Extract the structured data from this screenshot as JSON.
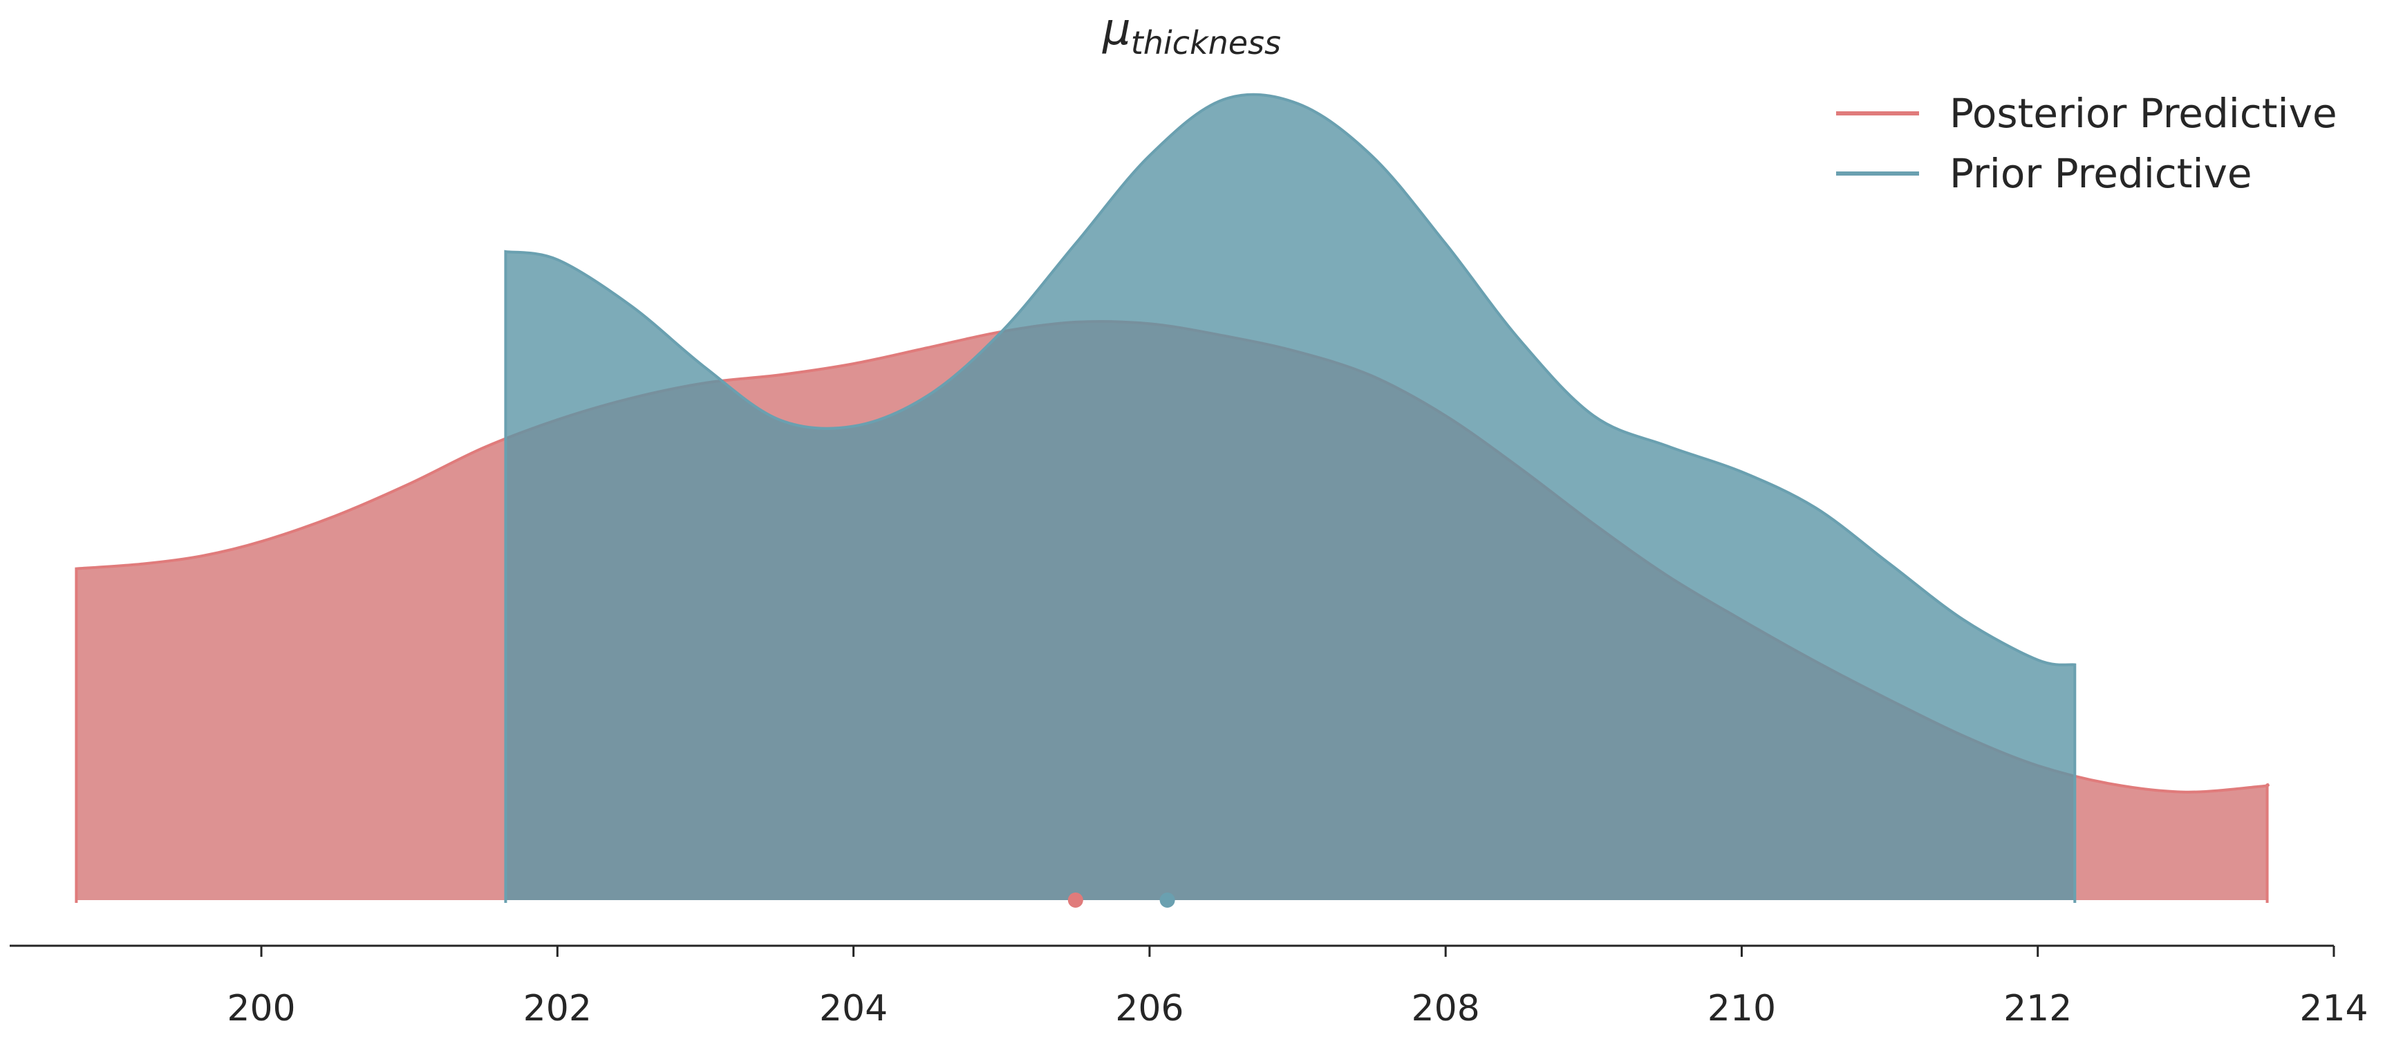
{
  "chart_data": {
    "type": "area",
    "title": {
      "symbol": "μ",
      "subscript": "thickness"
    },
    "xlabel": "",
    "ylabel": "",
    "xlim": [
      198.3,
      214.0
    ],
    "ylim": [
      0,
      1.0
    ],
    "x_ticks": [
      200,
      202,
      204,
      206,
      208,
      210,
      212,
      214
    ],
    "grid": false,
    "legend_position": "top-right",
    "series": [
      {
        "name": "Posterior Predictive",
        "color": "#e07b7b",
        "point_estimate": 205.5,
        "x": [
          198.75,
          199.2,
          199.6,
          200.0,
          200.5,
          201.0,
          201.5,
          202.0,
          202.5,
          203.0,
          203.5,
          204.0,
          204.5,
          205.0,
          205.5,
          206.0,
          206.5,
          207.0,
          207.5,
          208.0,
          208.5,
          209.0,
          209.5,
          210.0,
          210.5,
          211.0,
          211.5,
          212.0,
          212.5,
          213.0,
          213.5,
          213.55
        ],
        "y": [
          0.414,
          0.42,
          0.43,
          0.448,
          0.48,
          0.52,
          0.565,
          0.6,
          0.627,
          0.646,
          0.656,
          0.67,
          0.69,
          0.71,
          0.722,
          0.72,
          0.705,
          0.685,
          0.655,
          0.605,
          0.54,
          0.47,
          0.405,
          0.35,
          0.298,
          0.25,
          0.205,
          0.168,
          0.145,
          0.135,
          0.142,
          0.144
        ]
      },
      {
        "name": "Prior Predictive",
        "color": "#6aa0b0",
        "point_estimate": 206.12,
        "x": [
          201.65,
          202.0,
          202.5,
          203.0,
          203.5,
          204.0,
          204.5,
          205.0,
          205.5,
          206.0,
          206.5,
          207.0,
          207.5,
          208.0,
          208.5,
          209.0,
          209.5,
          210.0,
          210.5,
          211.0,
          211.5,
          212.0,
          212.25
        ],
        "y": [
          0.81,
          0.8,
          0.742,
          0.665,
          0.6,
          0.592,
          0.63,
          0.71,
          0.82,
          0.93,
          1.0,
          0.995,
          0.93,
          0.82,
          0.7,
          0.605,
          0.567,
          0.535,
          0.49,
          0.42,
          0.35,
          0.3,
          0.294
        ]
      }
    ]
  }
}
